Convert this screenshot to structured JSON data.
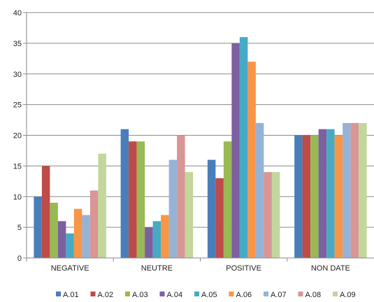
{
  "chart_data": {
    "type": "bar",
    "title": "",
    "xlabel": "",
    "ylabel": "",
    "ylim": [
      0,
      40
    ],
    "yticks": [
      0,
      5,
      10,
      15,
      20,
      25,
      30,
      35,
      40
    ],
    "grid": true,
    "legend_position": "bottom",
    "categories": [
      "NEGATIVE",
      "NEUTRE",
      "POSITIVE",
      "NON DATE"
    ],
    "series": [
      {
        "name": "A.01",
        "color": "#4A7EBB",
        "values": [
          10,
          21,
          16,
          20
        ]
      },
      {
        "name": "A.02",
        "color": "#BE4B48",
        "values": [
          15,
          19,
          13,
          20
        ]
      },
      {
        "name": "A.03",
        "color": "#98B954",
        "values": [
          9,
          19,
          19,
          20
        ]
      },
      {
        "name": "A.04",
        "color": "#7D60A0",
        "values": [
          6,
          5,
          35,
          21
        ]
      },
      {
        "name": "A.05",
        "color": "#46AAC5",
        "values": [
          4,
          6,
          36,
          21
        ]
      },
      {
        "name": "A.06",
        "color": "#F79646",
        "values": [
          8,
          7,
          32,
          20
        ]
      },
      {
        "name": "A.07",
        "color": "#95B3D7",
        "values": [
          7,
          16,
          22,
          22
        ]
      },
      {
        "name": "A.08",
        "color": "#D99694",
        "values": [
          11,
          20,
          14,
          22
        ]
      },
      {
        "name": "A.09",
        "color": "#C3D69B",
        "values": [
          17,
          14,
          14,
          22
        ]
      }
    ]
  }
}
